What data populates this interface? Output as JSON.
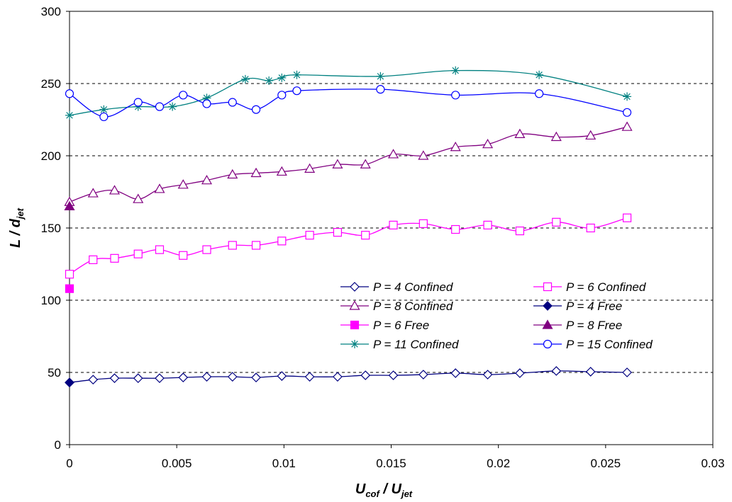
{
  "chart_data": {
    "type": "line",
    "title": "",
    "xlabel": {
      "main": "U",
      "sub": "cof",
      "mid": " / U",
      "sub2": "jet"
    },
    "ylabel": {
      "main": "L / d",
      "sub": "jet"
    },
    "xlim": [
      0,
      0.03
    ],
    "ylim": [
      0,
      300
    ],
    "xticks": [
      0,
      0.005,
      0.01,
      0.015,
      0.02,
      0.025,
      0.03
    ],
    "xtick_labels": [
      "0",
      "0.005",
      "0.01",
      "0.015",
      "0.02",
      "0.025",
      "0.03"
    ],
    "yticks": [
      0,
      50,
      100,
      150,
      200,
      250,
      300
    ],
    "ytick_labels": [
      "0",
      "50",
      "100",
      "150",
      "200",
      "250",
      "300"
    ],
    "grid": "horizontal dashed",
    "legend_position": "lower-right",
    "series": [
      {
        "name": "P = 4 Confined",
        "color": "#000080",
        "marker": "diamond-open",
        "line": true,
        "x": [
          0,
          0.0011,
          0.0021,
          0.0032,
          0.0042,
          0.0053,
          0.0064,
          0.0076,
          0.0087,
          0.0099,
          0.0112,
          0.0125,
          0.0138,
          0.0151,
          0.0165,
          0.018,
          0.0195,
          0.021,
          0.0227,
          0.0243,
          0.026
        ],
        "y": [
          43,
          45,
          46,
          46,
          46,
          46.5,
          47,
          47,
          46.5,
          47.5,
          47,
          47,
          48,
          48,
          48.5,
          49.5,
          48.5,
          49.5,
          51,
          50.5,
          50
        ]
      },
      {
        "name": "P = 6 Confined",
        "color": "#ff00ff",
        "marker": "square-open",
        "line": true,
        "x": [
          0,
          0.0011,
          0.0021,
          0.0032,
          0.0042,
          0.0053,
          0.0064,
          0.0076,
          0.0087,
          0.0099,
          0.0112,
          0.0125,
          0.0138,
          0.0151,
          0.0165,
          0.018,
          0.0195,
          0.021,
          0.0227,
          0.0243,
          0.026
        ],
        "y": [
          118,
          128,
          129,
          132,
          135,
          131,
          135,
          138,
          138,
          141,
          145,
          147,
          145,
          152,
          153,
          149,
          152,
          148,
          154,
          150,
          157
        ]
      },
      {
        "name": "P = 8 Confined",
        "color": "#800080",
        "marker": "triangle-open",
        "line": true,
        "x": [
          0,
          0.0011,
          0.0021,
          0.0032,
          0.0042,
          0.0053,
          0.0064,
          0.0076,
          0.0087,
          0.0099,
          0.0112,
          0.0125,
          0.0138,
          0.0151,
          0.0165,
          0.018,
          0.0195,
          0.021,
          0.0227,
          0.0243,
          0.026
        ],
        "y": [
          168,
          174,
          176,
          170,
          177,
          180,
          183,
          187,
          188,
          189,
          191,
          194,
          194,
          201,
          200,
          206,
          208,
          215,
          213,
          214,
          220
        ]
      },
      {
        "name": "P = 4 Free",
        "color": "#000080",
        "marker": "diamond-filled",
        "line": false,
        "x": [
          0
        ],
        "y": [
          43
        ]
      },
      {
        "name": "P = 6 Free",
        "color": "#ff00ff",
        "marker": "square-filled",
        "line": false,
        "x": [
          0
        ],
        "y": [
          108
        ]
      },
      {
        "name": "P = 8 Free",
        "color": "#800080",
        "marker": "triangle-filled",
        "line": false,
        "x": [
          0
        ],
        "y": [
          165
        ]
      },
      {
        "name": "P = 11  Confined",
        "color": "#008080",
        "marker": "star",
        "line": true,
        "x": [
          0,
          0.0016,
          0.0032,
          0.0048,
          0.0064,
          0.0082,
          0.0093,
          0.0099,
          0.0106,
          0.0145,
          0.018,
          0.0219,
          0.026
        ],
        "y": [
          228,
          232,
          234,
          234,
          240,
          253,
          252,
          254,
          256,
          255,
          259,
          256,
          241
        ]
      },
      {
        "name": "P = 15 Confined",
        "color": "#0000ff",
        "marker": "circle-open",
        "line": true,
        "x": [
          0,
          0.0016,
          0.0032,
          0.0042,
          0.0053,
          0.0064,
          0.0076,
          0.0087,
          0.0099,
          0.0106,
          0.0145,
          0.018,
          0.0219,
          0.026
        ],
        "y": [
          243,
          227,
          237,
          234,
          242,
          236,
          237,
          232,
          242,
          245,
          246,
          242,
          243,
          230
        ]
      }
    ]
  }
}
